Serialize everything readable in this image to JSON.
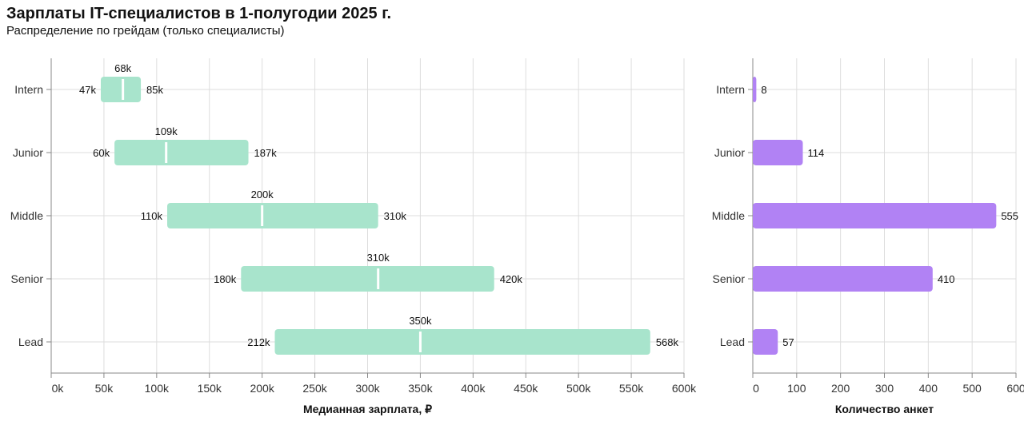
{
  "title": "Зарплаты IT-специалистов в 1-полугодии 2025 г.",
  "subtitle": "Распределение по грейдам (только специалисты)",
  "colors": {
    "range_bar": "#a8e4cc",
    "count_bar": "#b182f4",
    "grid": "#dddddd",
    "axis": "#888888"
  },
  "chart_data": [
    {
      "type": "bar",
      "subtype": "floating-range",
      "categories": [
        "Intern",
        "Junior",
        "Middle",
        "Senior",
        "Lead"
      ],
      "series": [
        {
          "name": "low",
          "values": [
            47000,
            60000,
            110000,
            180000,
            212000
          ]
        },
        {
          "name": "median",
          "values": [
            68000,
            109000,
            200000,
            310000,
            350000
          ]
        },
        {
          "name": "high",
          "values": [
            85000,
            187000,
            310000,
            420000,
            568000
          ]
        }
      ],
      "low_labels": [
        "47k",
        "60k",
        "110k",
        "180k",
        "212k"
      ],
      "median_labels": [
        "68k",
        "109k",
        "200k",
        "310k",
        "350k"
      ],
      "high_labels": [
        "85k",
        "187k",
        "310k",
        "420k",
        "568k"
      ],
      "xlabel": "Медианная зарплата, ₽",
      "ylabel": "",
      "xlim": [
        0,
        600000
      ],
      "xticks": [
        0,
        50000,
        100000,
        150000,
        200000,
        250000,
        300000,
        350000,
        400000,
        450000,
        500000,
        550000,
        600000
      ],
      "xtick_labels": [
        "0k",
        "50k",
        "100k",
        "150k",
        "200k",
        "250k",
        "300k",
        "350k",
        "400k",
        "450k",
        "500k",
        "550k",
        "600k"
      ],
      "grid": true
    },
    {
      "type": "bar",
      "orientation": "horizontal",
      "categories": [
        "Intern",
        "Junior",
        "Middle",
        "Senior",
        "Lead"
      ],
      "values": [
        8,
        114,
        555,
        410,
        57
      ],
      "value_labels": [
        "8",
        "114",
        "555",
        "410",
        "57"
      ],
      "xlabel": "Количество анкет",
      "ylabel": "",
      "xlim": [
        0,
        600
      ],
      "xticks": [
        0,
        100,
        200,
        300,
        400,
        500,
        600
      ],
      "xtick_labels": [
        "0",
        "100",
        "200",
        "300",
        "400",
        "500",
        "600"
      ],
      "grid": true
    }
  ]
}
